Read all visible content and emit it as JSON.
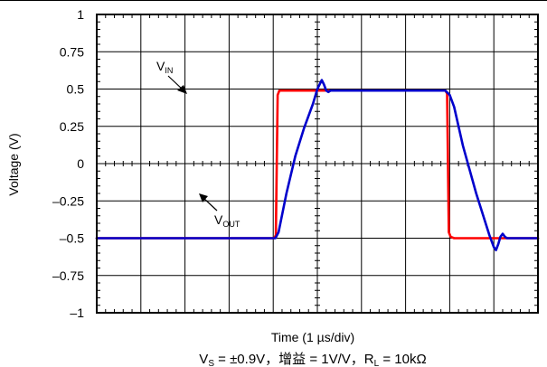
{
  "chart_data": {
    "type": "line",
    "title": "",
    "xlabel": "Time (1 µs/div)",
    "ylabel": "Voltage (V)",
    "ylim": [
      -1,
      1
    ],
    "xlim": [
      0,
      10
    ],
    "x_divisions": 10,
    "y_ticks": [
      {
        "value": 1,
        "label": "1"
      },
      {
        "value": 0.75,
        "label": "0.75"
      },
      {
        "value": 0.5,
        "label": "0.5"
      },
      {
        "value": 0.25,
        "label": "0.25"
      },
      {
        "value": 0,
        "label": "0"
      },
      {
        "value": -0.25,
        "label": "–0.25"
      },
      {
        "value": -0.5,
        "label": "–0.5"
      },
      {
        "value": -0.75,
        "label": "–0.75"
      },
      {
        "value": -1,
        "label": "–1"
      }
    ],
    "grid": true,
    "series": [
      {
        "name": "VIN",
        "color": "#ff0000",
        "x": [
          0,
          4.02,
          4.06,
          4.1,
          4.14,
          5.0,
          7.5,
          7.9,
          7.94,
          7.98,
          8.02,
          8.1,
          10
        ],
        "y": [
          -0.5,
          -0.5,
          -0.48,
          0.46,
          0.49,
          0.49,
          0.49,
          0.49,
          0.47,
          -0.46,
          -0.49,
          -0.5,
          -0.5
        ]
      },
      {
        "name": "VOUT",
        "color": "#0000cc",
        "x": [
          0,
          4.05,
          4.12,
          4.3,
          4.5,
          4.7,
          4.9,
          5.0,
          5.1,
          5.15,
          5.2,
          5.25,
          5.3,
          5.4,
          5.5,
          7.9,
          8.0,
          8.1,
          8.3,
          8.6,
          8.9,
          9.0,
          9.05,
          9.1,
          9.15,
          9.2,
          9.25,
          9.3,
          9.4,
          10
        ],
        "y": [
          -0.5,
          -0.5,
          -0.46,
          -0.2,
          0.05,
          0.24,
          0.4,
          0.5,
          0.56,
          0.53,
          0.49,
          0.48,
          0.49,
          0.49,
          0.49,
          0.49,
          0.46,
          0.38,
          0.12,
          -0.2,
          -0.48,
          -0.56,
          -0.58,
          -0.54,
          -0.49,
          -0.47,
          -0.49,
          -0.5,
          -0.5,
          -0.5
        ]
      }
    ],
    "annotations": [
      {
        "main": "V",
        "sub": "IN"
      },
      {
        "main": "V",
        "sub": "OUT"
      }
    ],
    "caption": "V<sub>S</sub> = ±0.9V，增益 = 1V/V，R<sub>L</sub> = 10kΩ"
  },
  "caption_parts": {
    "v": "V",
    "s": "S",
    "mid": " = ±0.9V，增益 = 1V/V，R",
    "l": "L",
    "end": " = 10kΩ"
  }
}
